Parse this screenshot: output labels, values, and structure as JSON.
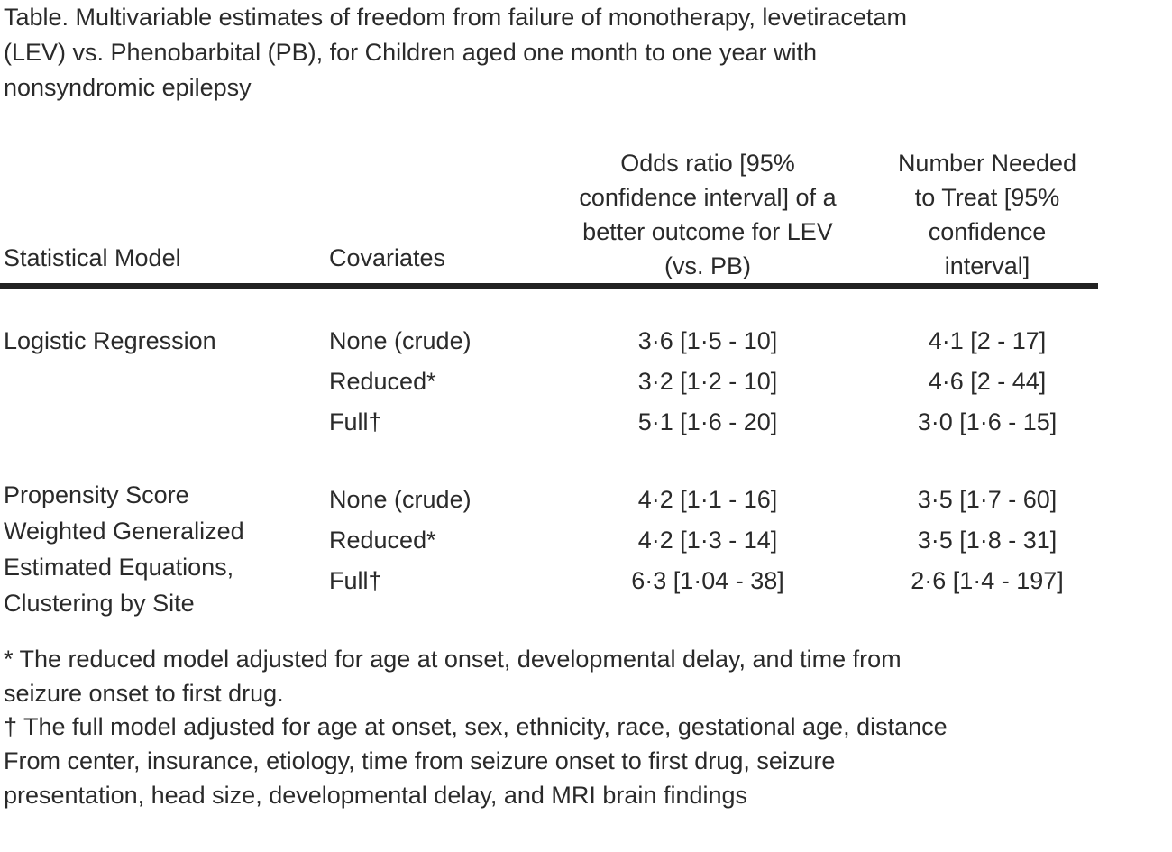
{
  "page": {
    "background_color": "#ffffff",
    "text_color": "#2a2a2a",
    "rule_color": "#222222"
  },
  "caption": {
    "lines": [
      "Table. Multivariable estimates of freedom from failure of monotherapy, levetiracetam",
      "(LEV) vs. Phenobarbital (PB), for Children aged one month to one year with",
      "nonsyndromic epilepsy"
    ],
    "full_text": "Table. Multivariable estimates of freedom from failure of monotherapy, levetiracetam (LEV) vs. Phenobarbital (PB), for Children aged one month to one year with nonsyndromic epilepsy"
  },
  "table": {
    "header": {
      "statistical_model": "Statistical Model",
      "covariates": "Covariates",
      "odds_ratio_lines": [
        "Odds ratio [95%",
        "confidence interval] of a",
        "better outcome for LEV",
        "(vs. PB)"
      ],
      "odds_ratio_full": "Odds ratio [95% confidence interval] of a better outcome for LEV (vs. PB)",
      "nnt_lines": [
        "Number Needed",
        "to Treat [95%",
        "confidence",
        "interval]"
      ],
      "nnt_full": "Number Needed to Treat [95% confidence interval]"
    },
    "groups": [
      {
        "model_lines": [
          "Logistic Regression"
        ],
        "model_full": "Logistic Regression",
        "rows": [
          {
            "covariate": "None (crude)",
            "odds_ratio": "3·6 [1·5 - 10]",
            "nnt": "4·1 [2 - 17]"
          },
          {
            "covariate": "Reduced*",
            "odds_ratio": "3·2 [1·2 - 10]",
            "nnt": "4·6 [2 - 44]"
          },
          {
            "covariate": "Full†",
            "odds_ratio": "5·1 [1·6 - 20]",
            "nnt": "3·0 [1·6 - 15]"
          }
        ]
      },
      {
        "model_lines": [
          "Propensity Score",
          "Weighted Generalized",
          "Estimated Equations,",
          "Clustering by Site"
        ],
        "model_full": "Propensity Score Weighted Generalized Estimated Equations, Clustering by Site",
        "rows": [
          {
            "covariate": "None (crude)",
            "odds_ratio": "4·2 [1·1 - 16]",
            "nnt": "3·5 [1·7 - 60]"
          },
          {
            "covariate": "Reduced*",
            "odds_ratio": "4·2 [1·3 - 14]",
            "nnt": "3·5 [1·8 - 31]"
          },
          {
            "covariate": "Full†",
            "odds_ratio": "6·3 [1·04 - 38]",
            "nnt": "2·6 [1·4 - 197]"
          }
        ]
      }
    ]
  },
  "footnotes": {
    "reduced": {
      "lines": [
        "* The reduced model adjusted for age at onset, developmental delay, and time from",
        "seizure onset to first drug."
      ],
      "full_text": "* The reduced model adjusted for age at onset, developmental delay, and time from seizure onset to first drug."
    },
    "full": {
      "lines": [
        "† The full model adjusted for age at onset, sex, ethnicity, race, gestational age, distance",
        "From center, insurance, etiology, time from seizure onset to first drug, seizure",
        "presentation, head size, developmental delay, and MRI brain findings"
      ],
      "full_text": "† The full model adjusted for age at onset, sex, ethnicity, race, gestational age, distance From center, insurance, etiology, time from seizure onset to first drug, seizure presentation, head size, developmental delay, and MRI brain findings"
    }
  }
}
